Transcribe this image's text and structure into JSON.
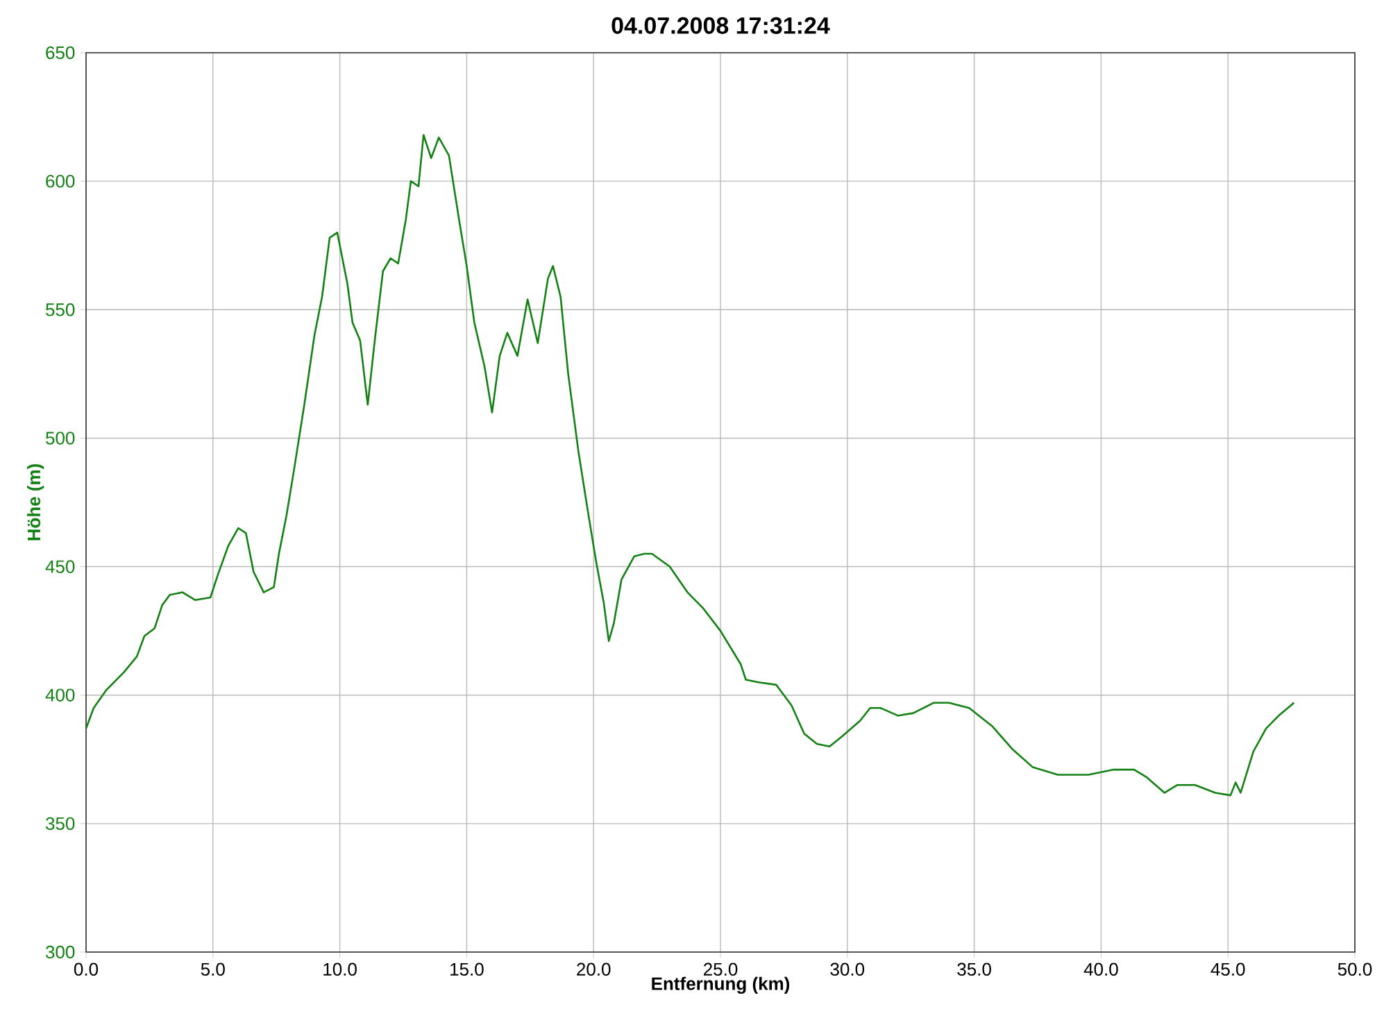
{
  "chart_data": {
    "type": "line",
    "title": "04.07.2008 17:31:24",
    "xlabel": "Entfernung (km)",
    "ylabel": "Höhe (m)",
    "xlim": [
      0,
      50
    ],
    "ylim": [
      300,
      650
    ],
    "xticks": [
      {
        "value": 0,
        "label": "0.0"
      },
      {
        "value": 5,
        "label": "5.0"
      },
      {
        "value": 10,
        "label": "10.0"
      },
      {
        "value": 15,
        "label": "15.0"
      },
      {
        "value": 20,
        "label": "20.0"
      },
      {
        "value": 25,
        "label": "25.0"
      },
      {
        "value": 30,
        "label": "30.0"
      },
      {
        "value": 35,
        "label": "35.0"
      },
      {
        "value": 40,
        "label": "40.0"
      },
      {
        "value": 45,
        "label": "45.0"
      },
      {
        "value": 50,
        "label": "50.0"
      }
    ],
    "yticks": [
      300,
      350,
      400,
      450,
      500,
      550,
      600,
      650
    ],
    "grid": true,
    "marker": "none",
    "line_style": "solid",
    "series": [
      {
        "color": "#138013",
        "x": [
          0,
          0.3,
          0.8,
          1.5,
          2.0,
          2.3,
          2.7,
          3.0,
          3.3,
          3.8,
          4.3,
          4.9,
          5.2,
          5.6,
          6.0,
          6.3,
          6.6,
          7.0,
          7.4,
          7.6,
          7.9,
          8.2,
          8.6,
          9.0,
          9.3,
          9.6,
          9.9,
          10.3,
          10.5,
          10.8,
          11.1,
          11.4,
          11.7,
          12.0,
          12.3,
          12.6,
          12.8,
          13.1,
          13.3,
          13.6,
          13.9,
          14.3,
          14.7,
          15.0,
          15.3,
          15.7,
          16.0,
          16.3,
          16.6,
          17.0,
          17.4,
          17.8,
          18.2,
          18.4,
          18.7,
          19.0,
          19.4,
          19.8,
          20.1,
          20.4,
          20.6,
          20.8,
          21.1,
          21.6,
          22.0,
          22.3,
          23.0,
          23.7,
          24.3,
          25.0,
          25.8,
          26.0,
          26.5,
          27.2,
          27.8,
          28.3,
          28.8,
          29.3,
          29.8,
          30.5,
          30.9,
          31.3,
          32.0,
          32.6,
          33.4,
          34.0,
          34.8,
          35.7,
          36.5,
          37.3,
          38.3,
          39.5,
          40.5,
          41.3,
          41.8,
          42.5,
          43.0,
          43.7,
          44.5,
          45.1,
          45.3,
          45.5,
          46.0,
          46.5,
          47.0,
          47.6
        ],
        "values": [
          387,
          395,
          402,
          409,
          415,
          423,
          426,
          435,
          439,
          440,
          437,
          438,
          447,
          458,
          465,
          463,
          448,
          440,
          442,
          455,
          470,
          488,
          513,
          540,
          555,
          578,
          580,
          560,
          545,
          538,
          513,
          540,
          565,
          570,
          568,
          585,
          600,
          598,
          618,
          609,
          617,
          610,
          585,
          567,
          545,
          528,
          510,
          532,
          541,
          532,
          554,
          537,
          562,
          567,
          555,
          525,
          495,
          470,
          452,
          436,
          421,
          428,
          445,
          454,
          455,
          455,
          450,
          440,
          434,
          425,
          412,
          406,
          405,
          404,
          396,
          385,
          381,
          380,
          384,
          390,
          395,
          395,
          392,
          393,
          397,
          397,
          395,
          388,
          379,
          372,
          369,
          369,
          371,
          371,
          368,
          362,
          365,
          365,
          362,
          361,
          366,
          362,
          378,
          387,
          392,
          397
        ]
      }
    ]
  }
}
